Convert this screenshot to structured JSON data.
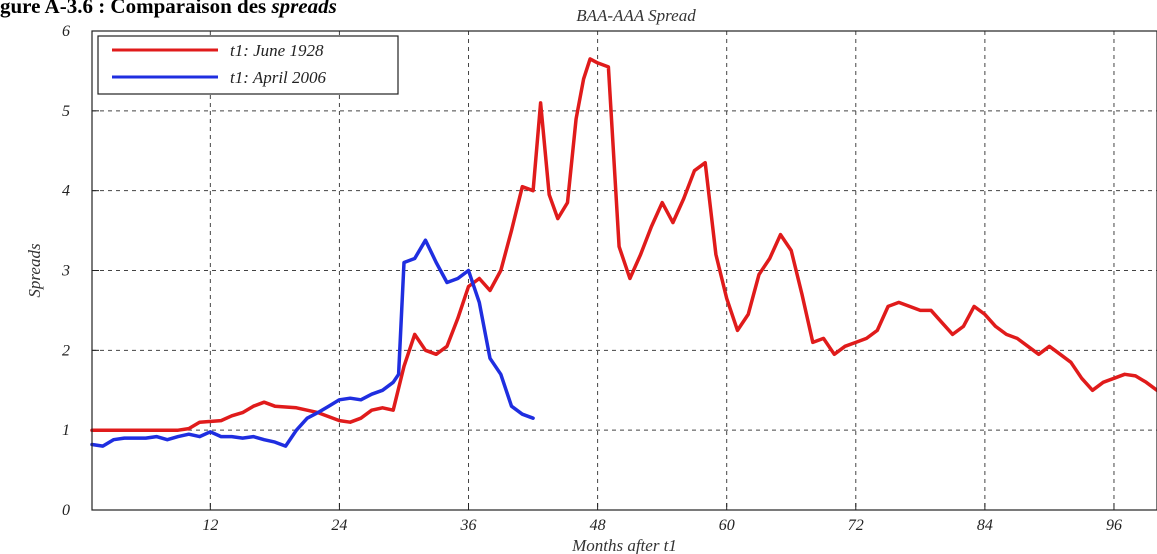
{
  "caption": {
    "prefix": "gure A-3.6 : Comparaison des ",
    "emph": "spreads"
  },
  "chart_data": {
    "type": "line",
    "title": "BAA-AAA Spread",
    "xlabel": "Months after t1",
    "ylabel": "Spreads",
    "xlim": [
      1,
      100
    ],
    "ylim": [
      0,
      6
    ],
    "xticks": [
      12,
      24,
      36,
      48,
      60,
      72,
      84,
      96
    ],
    "yticks": [
      0,
      1,
      2,
      3,
      4,
      5,
      6
    ],
    "grid": true,
    "legend_position": "top-left",
    "series": [
      {
        "name": "t1: June 1928",
        "color": "#e01b1b",
        "x": [
          1,
          4,
          7,
          9,
          10,
          11,
          13,
          14,
          15,
          16,
          17,
          18,
          20,
          22,
          24,
          25,
          26,
          27,
          28,
          29,
          30,
          31,
          32,
          33,
          34,
          35,
          36,
          37,
          38,
          39,
          40,
          41,
          42,
          42.7,
          43.5,
          44.3,
          45.2,
          46,
          46.7,
          47.3,
          48,
          49,
          50,
          51,
          52,
          53,
          54,
          55,
          56,
          57,
          58,
          59,
          60,
          61,
          62,
          63,
          64,
          65,
          66,
          67,
          68,
          69,
          70,
          71,
          72,
          73,
          74,
          75,
          76,
          77,
          78,
          79,
          80,
          81,
          82,
          83,
          84,
          85,
          86,
          87,
          88,
          89,
          90,
          91,
          92,
          93,
          94,
          95,
          96,
          97,
          98,
          99,
          100
        ],
        "y": [
          1.0,
          1.0,
          1.0,
          1.0,
          1.02,
          1.1,
          1.12,
          1.18,
          1.22,
          1.3,
          1.35,
          1.3,
          1.28,
          1.22,
          1.12,
          1.1,
          1.15,
          1.25,
          1.28,
          1.25,
          1.8,
          2.2,
          2.0,
          1.95,
          2.05,
          2.4,
          2.8,
          2.9,
          2.75,
          3.0,
          3.5,
          4.05,
          4.0,
          5.1,
          3.95,
          3.65,
          3.85,
          4.9,
          5.4,
          5.65,
          5.6,
          5.55,
          3.3,
          2.9,
          3.2,
          3.55,
          3.85,
          3.6,
          3.9,
          4.25,
          4.35,
          3.2,
          2.65,
          2.25,
          2.45,
          2.95,
          3.15,
          3.45,
          3.25,
          2.7,
          2.1,
          2.15,
          1.95,
          2.05,
          2.1,
          2.15,
          2.25,
          2.55,
          2.6,
          2.55,
          2.5,
          2.5,
          2.35,
          2.2,
          2.3,
          2.55,
          2.45,
          2.3,
          2.2,
          2.15,
          2.05,
          1.95,
          2.05,
          1.95,
          1.85,
          1.65,
          1.5,
          1.6,
          1.65,
          1.7,
          1.68,
          1.6,
          1.5
        ]
      },
      {
        "name": "t1: April 2006",
        "color": "#1f2ee0",
        "x": [
          1,
          2,
          3,
          4,
          5,
          6,
          7,
          8,
          9,
          10,
          11,
          12,
          13,
          14,
          15,
          16,
          17,
          18,
          19,
          20,
          21,
          22,
          23,
          24,
          25,
          26,
          27,
          28,
          29,
          29.5,
          30,
          31,
          32,
          33,
          34,
          35,
          36,
          37,
          38,
          39,
          40,
          41,
          42
        ],
        "y": [
          0.82,
          0.8,
          0.88,
          0.9,
          0.9,
          0.9,
          0.92,
          0.88,
          0.92,
          0.95,
          0.92,
          0.98,
          0.92,
          0.92,
          0.9,
          0.92,
          0.88,
          0.85,
          0.8,
          1.0,
          1.15,
          1.22,
          1.3,
          1.38,
          1.4,
          1.38,
          1.45,
          1.5,
          1.6,
          1.7,
          3.1,
          3.15,
          3.38,
          3.1,
          2.85,
          2.9,
          3.0,
          2.6,
          1.9,
          1.7,
          1.3,
          1.2,
          1.15
        ]
      }
    ]
  }
}
